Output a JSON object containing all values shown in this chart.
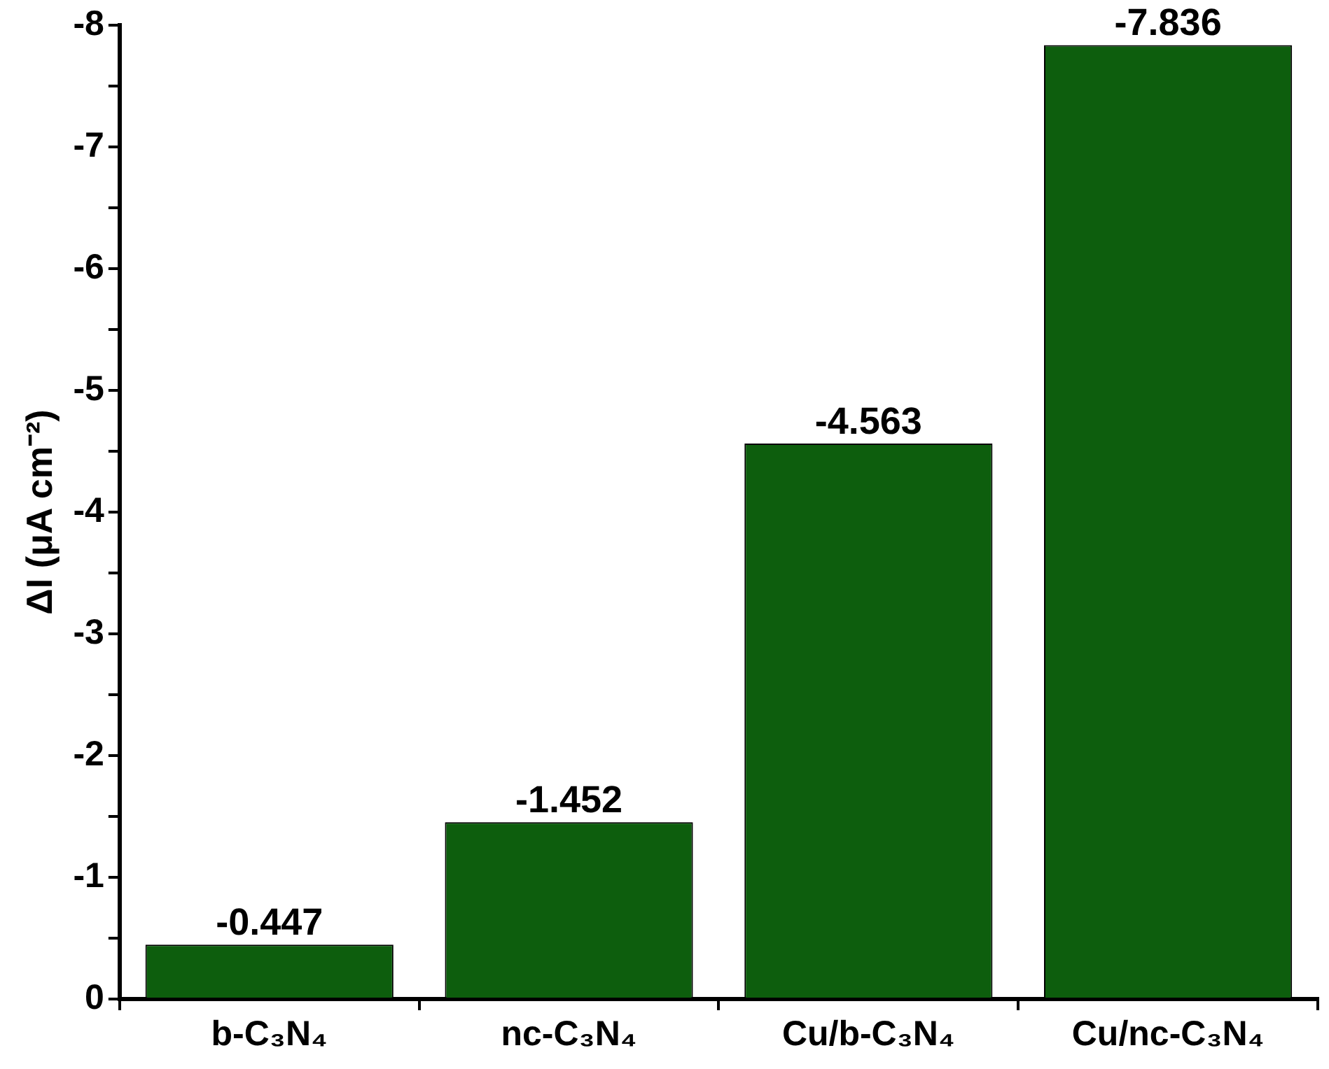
{
  "chart_data": {
    "type": "bar",
    "categories": [
      "b-C₃N₄",
      "nc-C₃N₄",
      "Cu/b-C₃N₄",
      "Cu/nc-C₃N₄"
    ],
    "values": [
      -0.447,
      -1.452,
      -4.563,
      -7.836
    ],
    "color": "#0d5e0d",
    "ylabel": "ΔI (μA cm⁻²)",
    "ylim": [
      0,
      -8
    ],
    "yticks": [
      0,
      {
        "value": -0.5,
        "label": null
      },
      -1,
      {
        "value": -1.5,
        "label": null
      },
      -2,
      {
        "value": -2.5,
        "label": null
      },
      -3,
      {
        "value": -3.5,
        "label": null
      },
      -4,
      {
        "value": -4.5,
        "label": null
      },
      -5,
      {
        "value": -5.5,
        "label": null
      },
      -6,
      {
        "value": -6.5,
        "label": null
      },
      -7,
      {
        "value": -7.5,
        "label": null
      },
      -8
    ],
    "data_labels": true,
    "legend": false
  }
}
